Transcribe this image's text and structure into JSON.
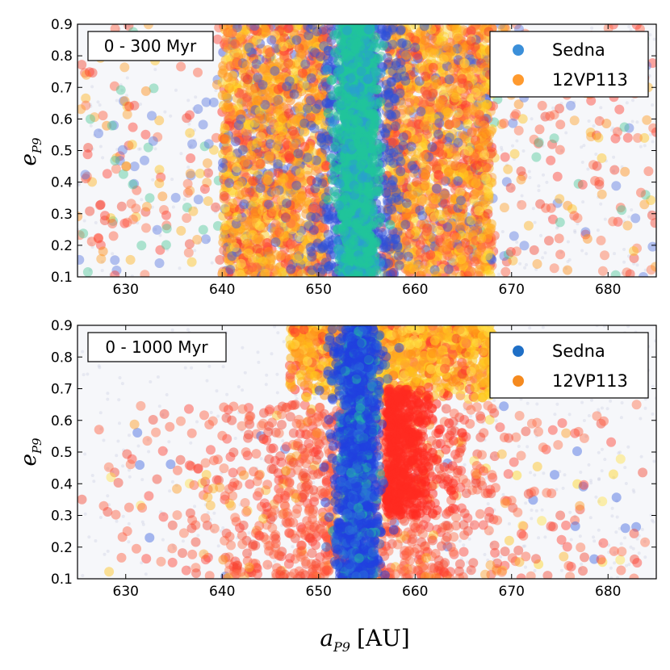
{
  "figure": {
    "x_axis_label_main": "a",
    "x_axis_label_sub": "P9",
    "x_axis_label_unit": "[AU]",
    "y_axis_label_main": "e",
    "y_axis_label_sub": "P9"
  },
  "chart_data": [
    {
      "type": "scatter",
      "panel": "top",
      "annotation": "0 - 300 Myr",
      "xlim": [
        625,
        685
      ],
      "ylim": [
        0.1,
        0.9
      ],
      "x_ticks": [
        630,
        640,
        650,
        660,
        670,
        680
      ],
      "y_ticks": [
        0.1,
        0.2,
        0.3,
        0.4,
        0.5,
        0.6,
        0.7,
        0.8,
        0.9
      ],
      "legend_position": "top-right",
      "series": [
        {
          "name": "Sedna",
          "color": "#3b8fd9",
          "description": "dense vertical column of points centered near a = 654 AU spanning the full eccentricity range, plus scattered points across the domain",
          "core_band": {
            "x_center": 654,
            "x_halfwidth": 2.5,
            "e_range": [
              0.1,
              0.9
            ]
          }
        },
        {
          "name": "12VP113",
          "color": "#ff9a2e",
          "description": "broad orange/red clouds on both sides of the Sedna column, densest between 640-650 AU and 657-668 AU, with sparse points across the whole domain",
          "dense_bands": [
            [
              640,
              651
            ],
            [
              657,
              668
            ]
          ],
          "e_range": [
            0.1,
            0.9
          ]
        }
      ]
    },
    {
      "type": "scatter",
      "panel": "bottom",
      "annotation": "0 - 1000 Myr",
      "xlim": [
        625,
        685
      ],
      "ylim": [
        0.1,
        0.9
      ],
      "x_ticks": [
        630,
        640,
        650,
        660,
        670,
        680
      ],
      "y_ticks": [
        0.1,
        0.2,
        0.3,
        0.4,
        0.5,
        0.6,
        0.7,
        0.8,
        0.9
      ],
      "legend_position": "top-right",
      "series": [
        {
          "name": "Sedna",
          "color": "#1f6fc6",
          "description": "narrow blue column centered near a = 654 AU spanning full eccentricity range, with few outliers",
          "core_band": {
            "x_center": 654,
            "x_halfwidth": 2.0,
            "e_range": [
              0.1,
              0.9
            ]
          }
        },
        {
          "name": "12VP113",
          "color": "#f58a1f",
          "description": "orange cluster concentrated at high eccentricity (e > 0.65) between 647-667 AU, and red points spread in a V/fan shape below, denser near the central column",
          "high_e_band": {
            "x_range": [
              647,
              668
            ],
            "e_range": [
              0.65,
              0.9
            ]
          },
          "low_e_fan": {
            "x_range": [
              627,
              684
            ],
            "e_range": [
              0.1,
              0.65
            ]
          }
        }
      ]
    }
  ],
  "legend": {
    "entries": [
      {
        "label": "Sedna",
        "color_top": "#3b8fd9",
        "color_bottom": "#1f6fc6"
      },
      {
        "label": "12VP113",
        "color_top": "#ff9a2e",
        "color_bottom": "#f58a1f"
      }
    ]
  }
}
